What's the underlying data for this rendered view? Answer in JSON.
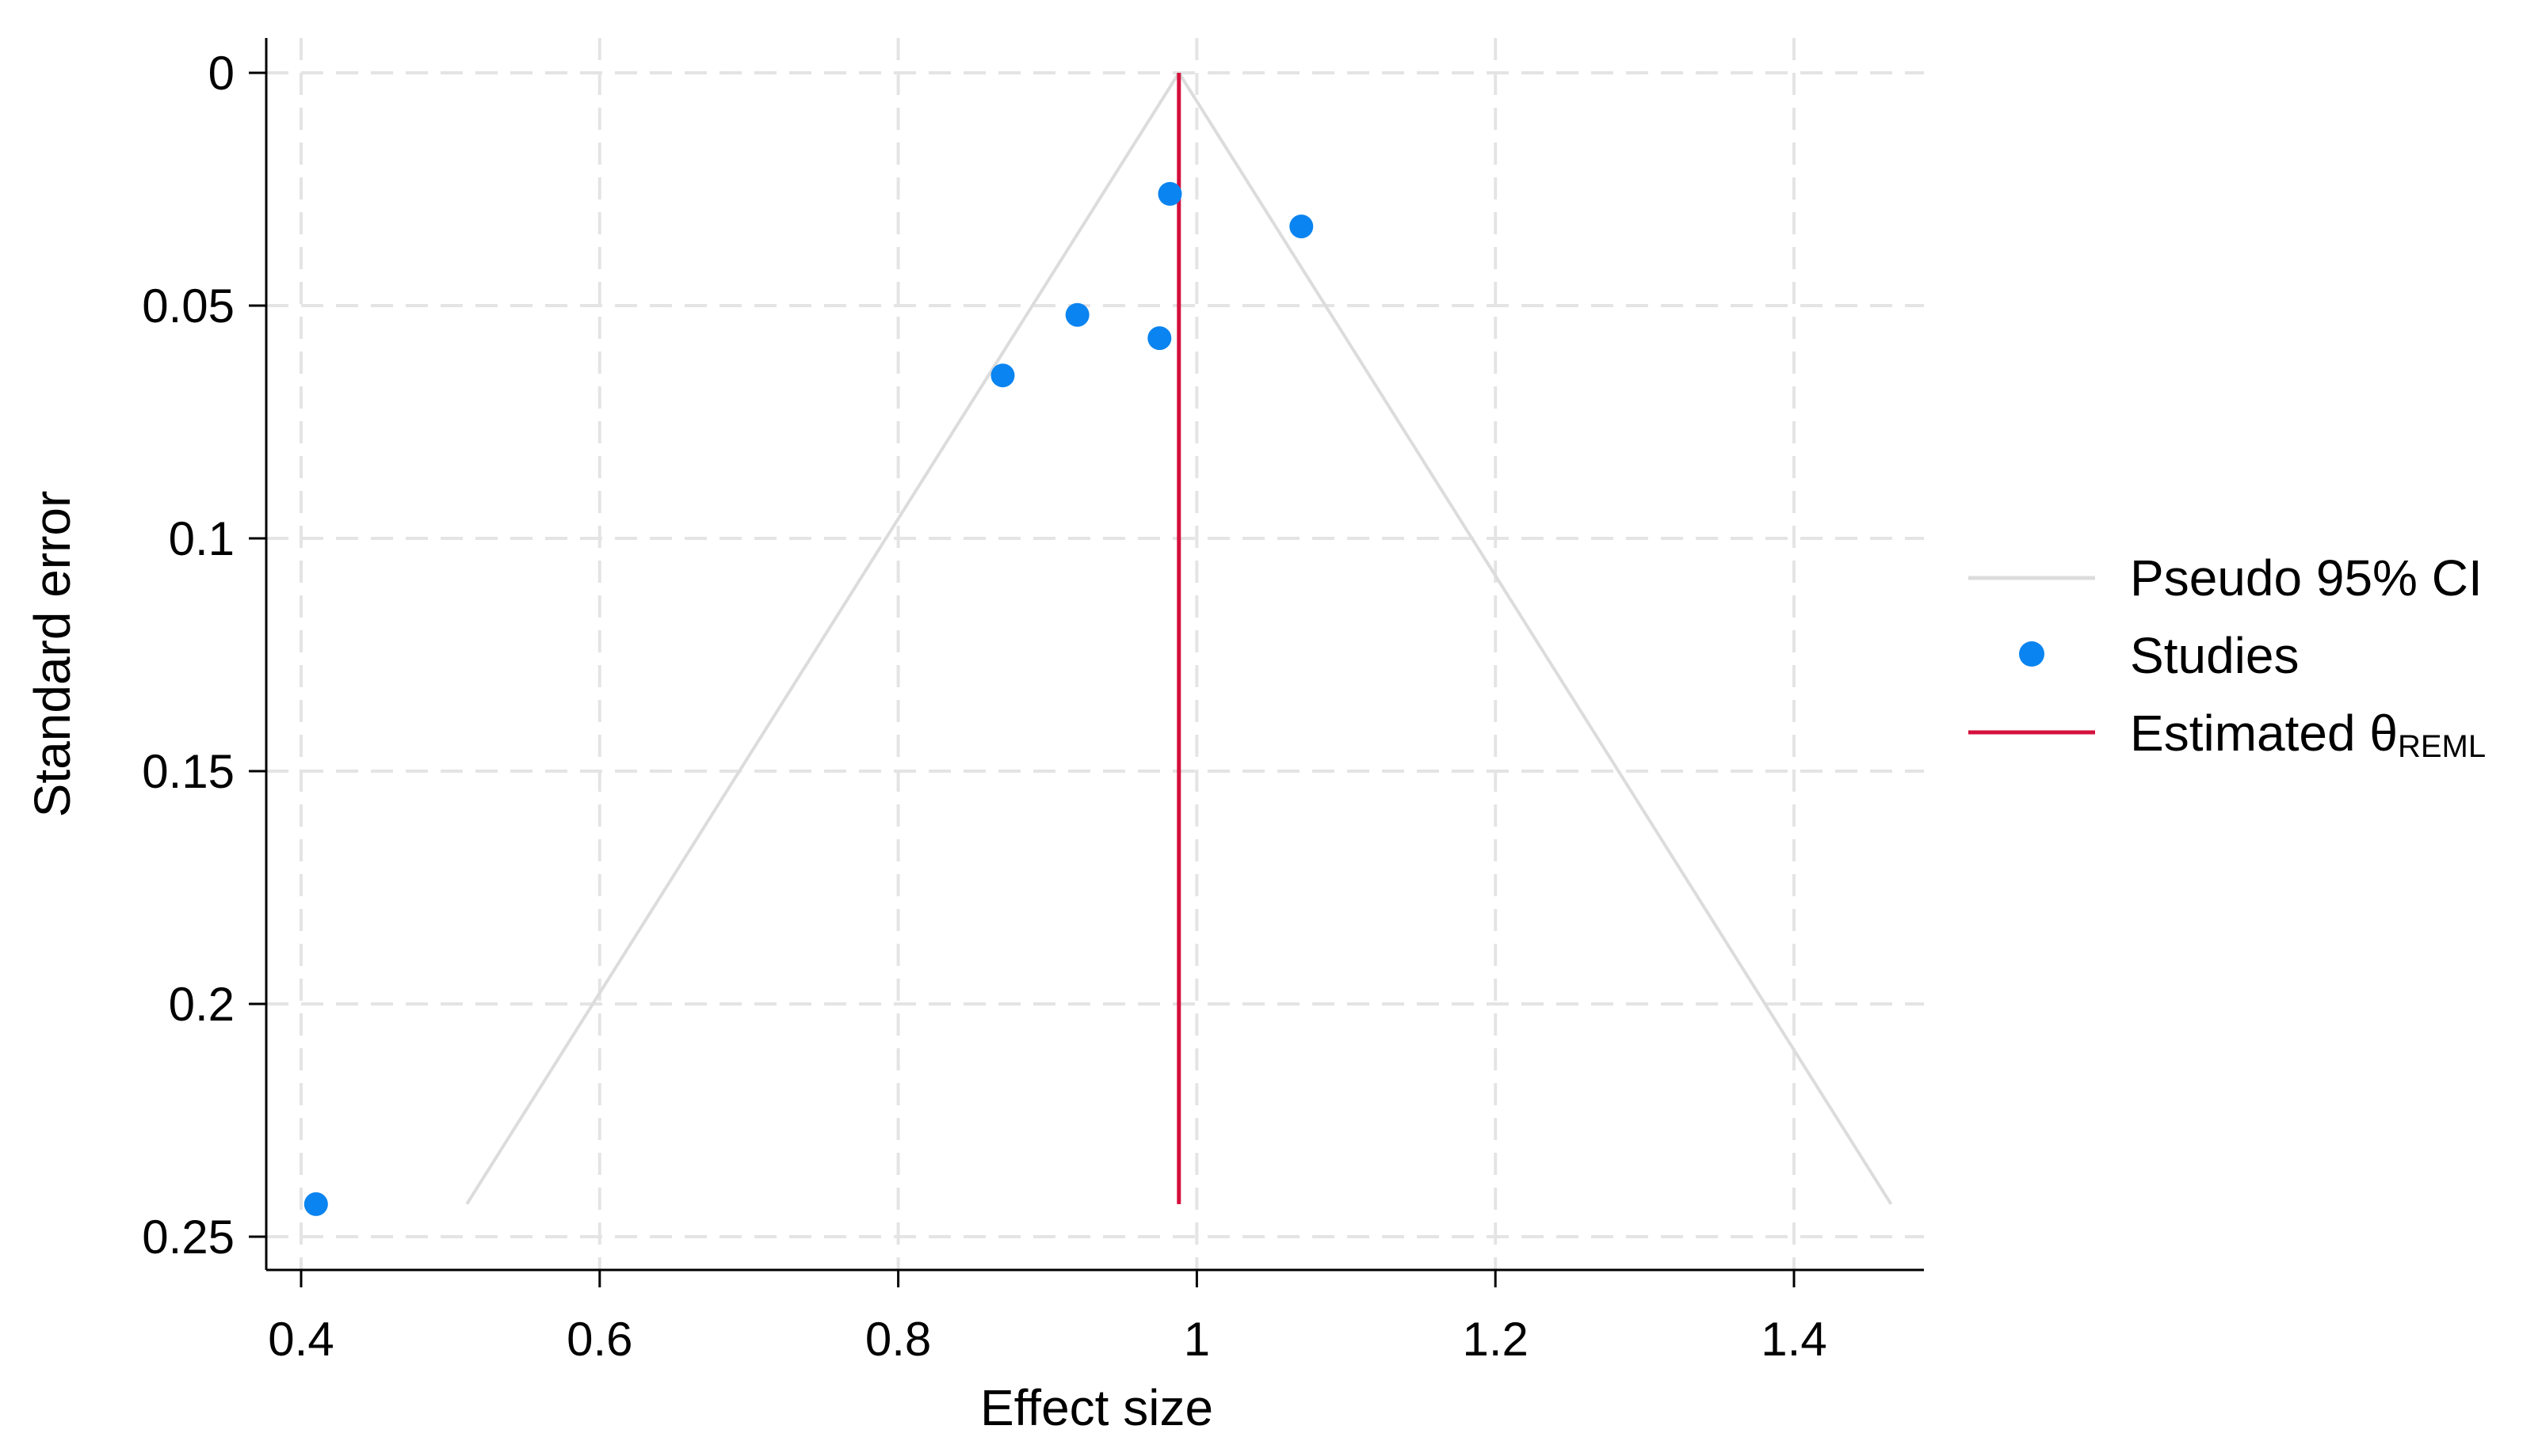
{
  "chart_data": {
    "type": "scatter",
    "subtype": "funnel plot",
    "xlabel": "Effect size",
    "ylabel": "Standard error",
    "xlim": [
      0.39,
      1.49
    ],
    "ylim": [
      0.257,
      0.0
    ],
    "y_axis_inverted": true,
    "xticks": [
      0.4,
      0.6,
      0.8,
      1,
      1.2,
      1.4
    ],
    "xtick_labels": [
      "0.4",
      "0.6",
      "0.8",
      "1",
      "1.2",
      "1.4"
    ],
    "yticks": [
      0,
      0.05,
      0.1,
      0.15,
      0.2,
      0.25
    ],
    "ytick_labels": [
      "0",
      "0.05",
      "0.1",
      "0.15",
      "0.2",
      "0.25"
    ],
    "grid": "dashed, both axes",
    "legend_position": "right",
    "theta": 0.988,
    "pseudo_ci": {
      "apex": [
        0.988,
        0.0
      ],
      "lower_base": [
        0.511,
        0.243
      ],
      "upper_base": [
        1.465,
        0.243
      ]
    },
    "studies": [
      {
        "x": 0.982,
        "y": 0.026
      },
      {
        "x": 1.07,
        "y": 0.033
      },
      {
        "x": 0.92,
        "y": 0.052
      },
      {
        "x": 0.975,
        "y": 0.057
      },
      {
        "x": 0.87,
        "y": 0.065
      },
      {
        "x": 0.41,
        "y": 0.243
      }
    ],
    "colors": {
      "points": "#0a84f0",
      "theta_line": "#d4103c",
      "ci_line": "#dcdcdc",
      "grid": "#e4e4e4",
      "axis": "#000000"
    },
    "legend": [
      {
        "label": "Pseudo 95% CI",
        "symbol": "line",
        "color": "#dcdcdc"
      },
      {
        "label": "Studies",
        "symbol": "dot",
        "color": "#0a84f0"
      },
      {
        "label": "Estimated θ",
        "subscript": "REML",
        "symbol": "line",
        "color": "#d4103c"
      }
    ]
  }
}
